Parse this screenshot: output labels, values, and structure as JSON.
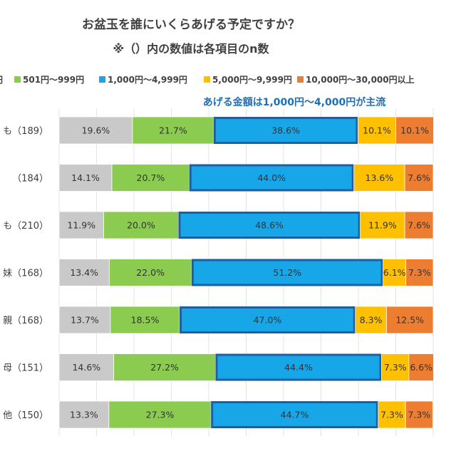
{
  "chart_data": {
    "type": "bar",
    "stacked": true,
    "orientation": "horizontal",
    "title": "お盆玉を誰にいくらあげる予定ですか？",
    "subtitle": "※（）内の数値は各項目のn数",
    "annotation": "あげる金額は1,000円～4,000円が主流",
    "legend_position": "top",
    "legend": [
      "円",
      "501円～999円",
      "1,000円～4,999円",
      "5,000円～9,999円",
      "10,000円～30,000円以上"
    ],
    "colors": [
      "#c9c9c9",
      "#8bcb4f",
      "#17a6e8",
      "#ffc000",
      "#ed7d31"
    ],
    "categories": [
      "も（189）",
      "（184）",
      "も（210）",
      "妹（168）",
      "親（168）",
      "母（151）",
      "他（150）"
    ],
    "series": [
      {
        "name": "円",
        "values": [
          19.6,
          14.1,
          11.9,
          13.4,
          13.7,
          14.6,
          13.3
        ],
        "labels": [
          "19.6%",
          "14.1%",
          "11.9%",
          "13.4%",
          "13.7%",
          "14.6%",
          "13.3%"
        ]
      },
      {
        "name": "501円～999円",
        "values": [
          21.7,
          20.7,
          20.0,
          22.0,
          18.5,
          27.2,
          27.3
        ],
        "labels": [
          "21.7%",
          "20.7%",
          "20.0%",
          "22.0%",
          "18.5%",
          "27.2%",
          "27.3%"
        ]
      },
      {
        "name": "1,000円～4,999円",
        "values": [
          38.6,
          44.0,
          48.6,
          51.2,
          47.0,
          44.4,
          44.7
        ],
        "labels": [
          "38.6%",
          "44.0%",
          "48.6%",
          "51.2%",
          "47.0%",
          "44.4%",
          "44.7%"
        ]
      },
      {
        "name": "5,000円～9,999円",
        "values": [
          10.1,
          13.6,
          11.9,
          6.1,
          8.3,
          7.3,
          7.3
        ],
        "labels": [
          "10.1%",
          "13.6%",
          "11.9%",
          "6.1%",
          "8.3%",
          "7.3%",
          "7.3%"
        ]
      },
      {
        "name": "10,000円～30,000円以上",
        "values": [
          10.1,
          7.6,
          7.6,
          7.3,
          12.5,
          6.6,
          7.3
        ],
        "labels": [
          "10.1%",
          "7.6%",
          "7.6%",
          "7.3%",
          "12.5%",
          "6.6%",
          "7.3%"
        ]
      }
    ],
    "xlim": [
      0,
      100
    ],
    "grid": true,
    "highlight_series": "1,000円～4,999円"
  }
}
